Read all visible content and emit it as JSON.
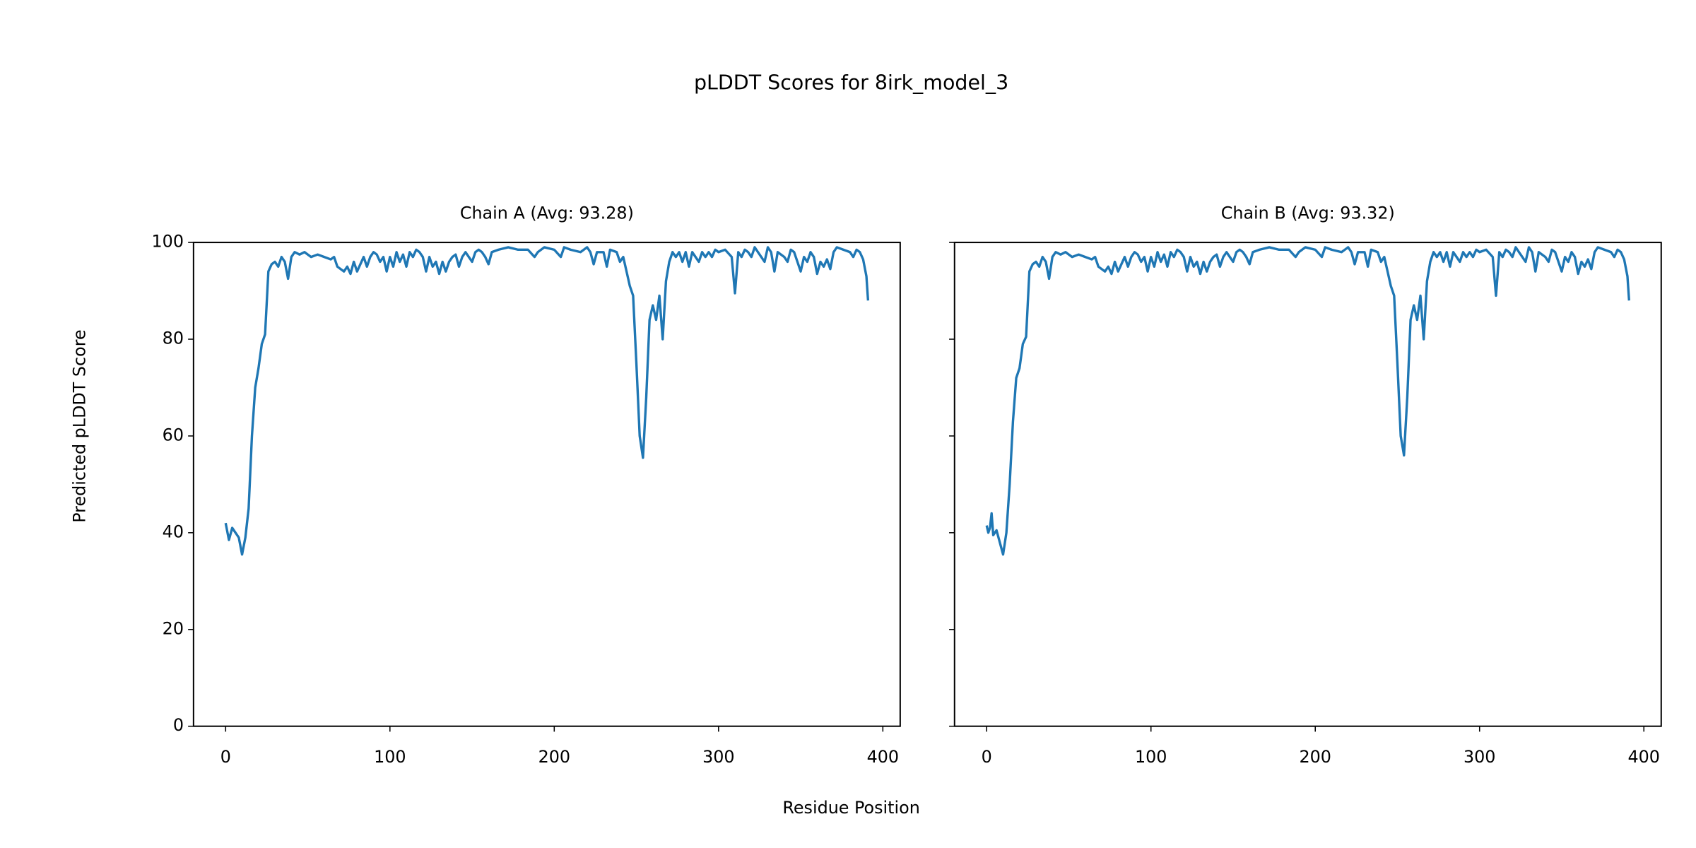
{
  "title": "pLDDT Scores for 8irk_model_3",
  "x_label": "Residue Position",
  "y_label": "Predicted pLDDT Score",
  "chart_data": [
    {
      "type": "line",
      "title": "Chain A (Avg: 93.28)",
      "color": "#1f77b4",
      "xlim": [
        -19.55,
        410.55
      ],
      "ylim": [
        0,
        100
      ],
      "xticks": [
        0,
        100,
        200,
        300,
        400
      ],
      "yticks": [
        0,
        20,
        40,
        60,
        80,
        100
      ],
      "x": [
        0,
        2,
        4,
        6,
        8,
        10,
        12,
        14,
        16,
        18,
        20,
        22,
        24,
        26,
        28,
        30,
        32,
        34,
        36,
        38,
        40,
        42,
        45,
        48,
        52,
        56,
        60,
        64,
        66,
        68,
        72,
        74,
        76,
        78,
        80,
        84,
        86,
        88,
        90,
        92,
        94,
        96,
        98,
        100,
        102,
        104,
        106,
        108,
        110,
        112,
        114,
        116,
        118,
        120,
        122,
        124,
        126,
        128,
        130,
        132,
        134,
        136,
        138,
        140,
        142,
        144,
        146,
        148,
        150,
        152,
        154,
        156,
        158,
        160,
        162,
        166,
        172,
        178,
        184,
        188,
        190,
        194,
        200,
        204,
        206,
        210,
        216,
        220,
        222,
        224,
        226,
        230,
        232,
        234,
        238,
        240,
        242,
        244,
        246,
        248,
        250,
        252,
        254,
        256,
        258,
        260,
        262,
        264,
        266,
        268,
        270,
        272,
        274,
        276,
        278,
        280,
        282,
        284,
        286,
        288,
        290,
        292,
        294,
        296,
        298,
        300,
        304,
        308,
        310,
        312,
        314,
        316,
        318,
        320,
        322,
        324,
        328,
        330,
        332,
        334,
        336,
        340,
        342,
        344,
        346,
        348,
        350,
        352,
        354,
        356,
        358,
        360,
        362,
        364,
        366,
        368,
        370,
        372,
        376,
        380,
        382,
        384,
        386,
        388,
        390,
        391
      ],
      "values": [
        42,
        38.5,
        41,
        40,
        39,
        35.5,
        39,
        45,
        60,
        70,
        74,
        79,
        81,
        94,
        95.5,
        96,
        95,
        97,
        96,
        92.5,
        97,
        98,
        97.5,
        98,
        97,
        97.5,
        97,
        96.5,
        97,
        95,
        94,
        95,
        93.5,
        96,
        94,
        97,
        95,
        97,
        98,
        97.5,
        96,
        97,
        94,
        97,
        95,
        98,
        96,
        97.5,
        95,
        98,
        97,
        98.5,
        98,
        97,
        94,
        97,
        95,
        96,
        93.5,
        96,
        94,
        96,
        97,
        97.5,
        95,
        97,
        98,
        97,
        96,
        98,
        98.5,
        98,
        97,
        95.5,
        98,
        98.5,
        99,
        98.5,
        98.5,
        97,
        98,
        99,
        98.5,
        97,
        99,
        98.5,
        98,
        99,
        98,
        95.5,
        98,
        98,
        95,
        98.5,
        98,
        96,
        97,
        94,
        91,
        89,
        75,
        60,
        55.5,
        68,
        84,
        87,
        84,
        89,
        80,
        92,
        96,
        98,
        97,
        98,
        96,
        98,
        95,
        98,
        97,
        96,
        98,
        97,
        98,
        97,
        98.5,
        98,
        98.5,
        97,
        89.5,
        98,
        97,
        98.5,
        98,
        97,
        99,
        98,
        96,
        99,
        98,
        94,
        98,
        97,
        96,
        98.5,
        98,
        96,
        94,
        97,
        96,
        98,
        97,
        93.5,
        96,
        95,
        96.5,
        94.5,
        98,
        99,
        98.5,
        98,
        97,
        98.5,
        98,
        96.5,
        93,
        88
      ]
    },
    {
      "type": "line",
      "title": "Chain B (Avg: 93.32)",
      "color": "#1f77b4",
      "xlim": [
        -19.55,
        410.55
      ],
      "ylim": [
        0,
        100
      ],
      "xticks": [
        0,
        100,
        200,
        300,
        400
      ],
      "yticks": [
        0,
        20,
        40,
        60,
        80,
        100
      ],
      "x": [
        0,
        1,
        2,
        3,
        4,
        6,
        8,
        10,
        12,
        14,
        16,
        18,
        20,
        22,
        24,
        26,
        28,
        30,
        32,
        34,
        36,
        38,
        40,
        42,
        45,
        48,
        52,
        56,
        60,
        64,
        66,
        68,
        72,
        74,
        76,
        78,
        80,
        84,
        86,
        88,
        90,
        92,
        94,
        96,
        98,
        100,
        102,
        104,
        106,
        108,
        110,
        112,
        114,
        116,
        118,
        120,
        122,
        124,
        126,
        128,
        130,
        132,
        134,
        136,
        138,
        140,
        142,
        144,
        146,
        148,
        150,
        152,
        154,
        156,
        158,
        160,
        162,
        166,
        172,
        178,
        184,
        188,
        190,
        194,
        200,
        204,
        206,
        210,
        216,
        220,
        222,
        224,
        226,
        230,
        232,
        234,
        238,
        240,
        242,
        244,
        246,
        248,
        250,
        252,
        254,
        256,
        258,
        260,
        262,
        264,
        266,
        268,
        270,
        272,
        274,
        276,
        278,
        280,
        282,
        284,
        286,
        288,
        290,
        292,
        294,
        296,
        298,
        300,
        304,
        308,
        310,
        312,
        314,
        316,
        318,
        320,
        322,
        324,
        328,
        330,
        332,
        334,
        336,
        340,
        342,
        344,
        346,
        348,
        350,
        352,
        354,
        356,
        358,
        360,
        362,
        364,
        366,
        368,
        370,
        372,
        376,
        380,
        382,
        384,
        386,
        388,
        390,
        391
      ],
      "values": [
        41.5,
        40,
        41,
        44,
        39.5,
        40.5,
        38,
        35.5,
        40,
        50,
        63,
        72,
        74,
        79,
        80.5,
        94,
        95.5,
        96,
        95,
        97,
        96,
        92.5,
        97,
        98,
        97.5,
        98,
        97,
        97.5,
        97,
        96.5,
        97,
        95,
        94,
        95,
        93.5,
        96,
        94,
        97,
        95,
        97,
        98,
        97.5,
        96,
        97,
        94,
        97,
        95,
        98,
        96,
        97.5,
        95,
        98,
        97,
        98.5,
        98,
        97,
        94,
        97,
        95,
        96,
        93.5,
        96,
        94,
        96,
        97,
        97.5,
        95,
        97,
        98,
        97,
        96,
        98,
        98.5,
        98,
        97,
        95.5,
        98,
        98.5,
        99,
        98.5,
        98.5,
        97,
        98,
        99,
        98.5,
        97,
        99,
        98.5,
        98,
        99,
        98,
        95.5,
        98,
        98,
        95,
        98.5,
        98,
        96,
        97,
        94,
        91,
        89,
        75,
        60,
        56,
        68,
        84,
        87,
        84,
        89,
        80,
        92,
        96,
        98,
        97,
        98,
        96,
        98,
        95,
        98,
        97,
        96,
        98,
        97,
        98,
        97,
        98.5,
        98,
        98.5,
        97,
        89,
        98,
        97,
        98.5,
        98,
        97,
        99,
        98,
        96,
        99,
        98,
        94,
        98,
        97,
        96,
        98.5,
        98,
        96,
        94,
        97,
        96,
        98,
        97,
        93.5,
        96,
        95,
        96.5,
        94.5,
        98,
        99,
        98.5,
        98,
        97,
        98.5,
        98,
        96.5,
        93,
        88
      ]
    }
  ]
}
